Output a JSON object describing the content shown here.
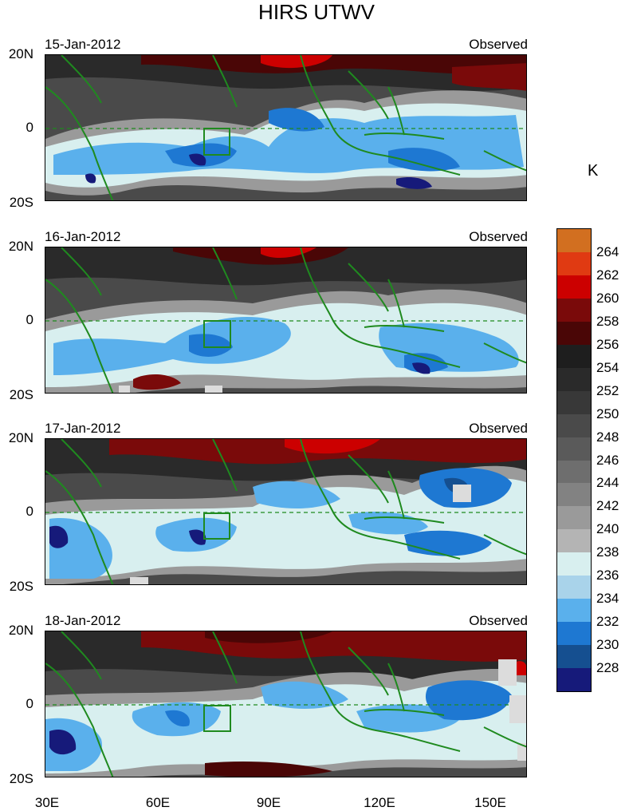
{
  "figure": {
    "title": "HIRS UTWV",
    "unit_label": "K",
    "lat_labels": [
      "20N",
      "0",
      "20S"
    ],
    "lon_labels": [
      "30E",
      "60E",
      "90E",
      "120E",
      "150E"
    ]
  },
  "panels": [
    {
      "date": "15-Jan-2012",
      "label": "Observed"
    },
    {
      "date": "16-Jan-2012",
      "label": "Observed"
    },
    {
      "date": "17-Jan-2012",
      "label": "Observed"
    },
    {
      "date": "18-Jan-2012",
      "label": "Observed"
    }
  ],
  "colorbar": {
    "levels": [
      "264",
      "262",
      "260",
      "258",
      "256",
      "254",
      "252",
      "250",
      "248",
      "246",
      "244",
      "242",
      "240",
      "238",
      "236",
      "234",
      "232",
      "230",
      "228"
    ],
    "colors": [
      "#d26f20",
      "#e03a12",
      "#cc0000",
      "#7a0a0a",
      "#4a0606",
      "#1e1e1e",
      "#2a2a2a",
      "#383838",
      "#4a4a4a",
      "#5a5a5a",
      "#6e6e6e",
      "#828282",
      "#9a9a9a",
      "#b4b4b4",
      "#d8efef",
      "#a9d3ea",
      "#5ab0ec",
      "#1e78d2",
      "#154f90",
      "#161a7a"
    ]
  }
}
